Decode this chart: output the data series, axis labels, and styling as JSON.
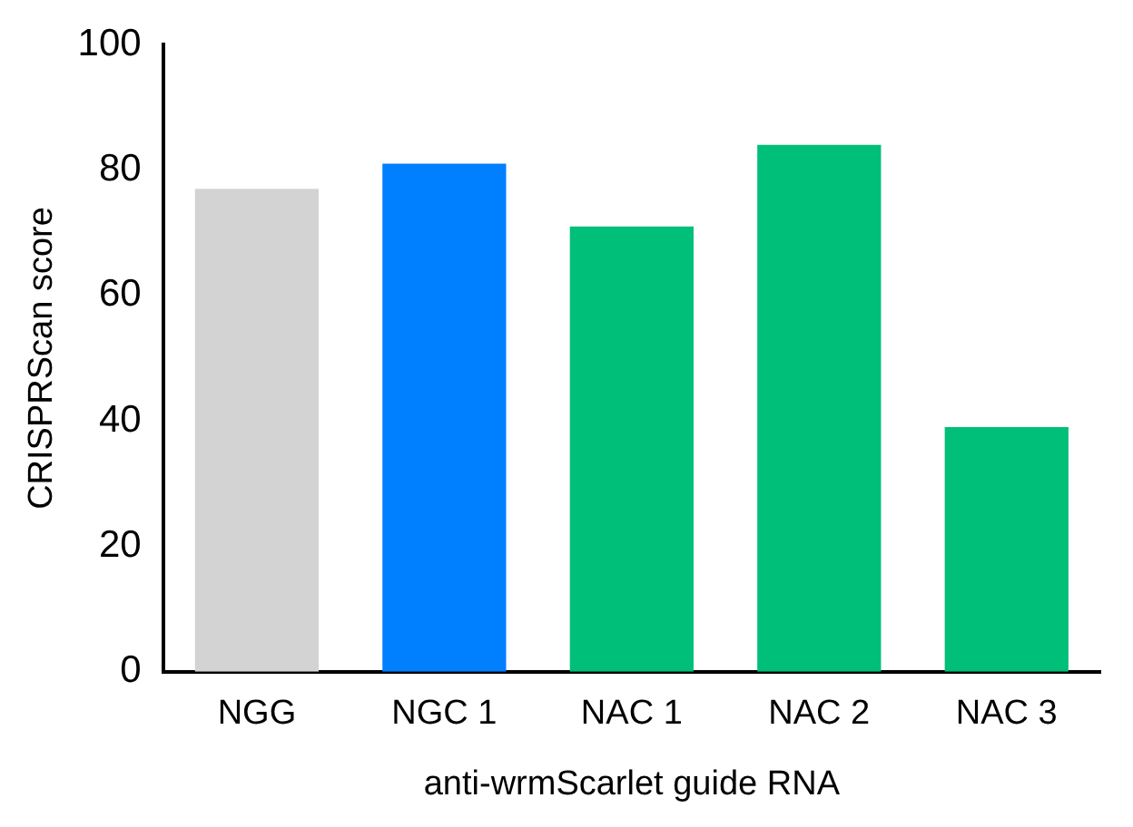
{
  "chart_data": {
    "type": "bar",
    "xlabel": "anti-wrmScarlet guide RNA",
    "ylabel": "CRISPRScan score",
    "categories": [
      "NGG",
      "NGC 1",
      "NAC 1",
      "NAC 2",
      "NAC 3"
    ],
    "values": [
      77,
      81,
      71,
      84,
      39
    ],
    "colors": [
      "#d3d3d3",
      "#0080ff",
      "#00bf78",
      "#00bf78",
      "#00bf78"
    ],
    "ylim": [
      0,
      100
    ],
    "yticks": [
      0,
      20,
      40,
      60,
      80,
      100
    ],
    "grid": false,
    "legend": false
  }
}
